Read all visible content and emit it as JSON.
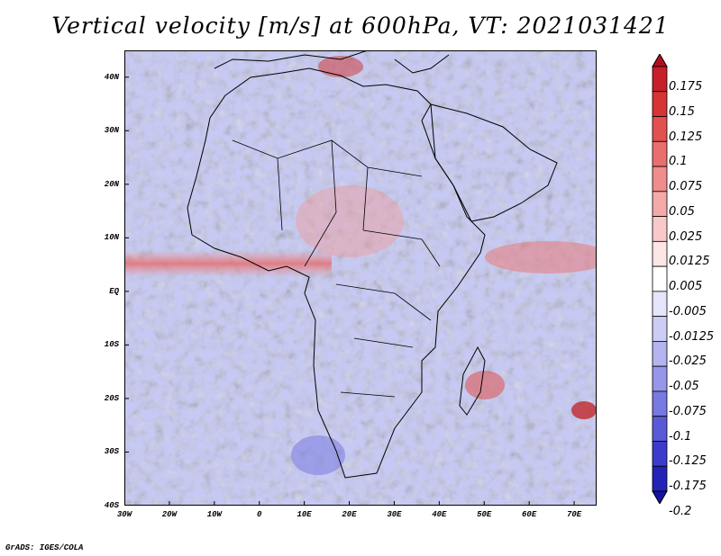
{
  "title": "Vertical velocity [m/s] at 600hPa, VT: 2021031421",
  "credit": "GrADS: IGES/COLA",
  "map": {
    "lon_range": [
      -30,
      75
    ],
    "lat_range": [
      -40,
      45
    ],
    "lat_labels": [
      {
        "lat": 40,
        "text": "40N"
      },
      {
        "lat": 30,
        "text": "30N"
      },
      {
        "lat": 20,
        "text": "20N"
      },
      {
        "lat": 10,
        "text": "10N"
      },
      {
        "lat": 0,
        "text": "EQ"
      },
      {
        "lat": -10,
        "text": "10S"
      },
      {
        "lat": -20,
        "text": "20S"
      },
      {
        "lat": -30,
        "text": "30S"
      },
      {
        "lat": -40,
        "text": "40S"
      }
    ],
    "lon_labels": [
      {
        "lon": -30,
        "text": "30W"
      },
      {
        "lon": -20,
        "text": "20W"
      },
      {
        "lon": -10,
        "text": "10W"
      },
      {
        "lon": 0,
        "text": "0"
      },
      {
        "lon": 10,
        "text": "10E"
      },
      {
        "lon": 20,
        "text": "20E"
      },
      {
        "lon": 30,
        "text": "30E"
      },
      {
        "lon": 40,
        "text": "40E"
      },
      {
        "lon": 50,
        "text": "50E"
      },
      {
        "lon": 60,
        "text": "60E"
      },
      {
        "lon": 70,
        "text": "70E"
      }
    ]
  },
  "colorbar": {
    "labels": [
      "0.175",
      "0.15",
      "0.125",
      "0.1",
      "0.075",
      "0.05",
      "0.025",
      "0.0125",
      "0.005",
      "-0.005",
      "-0.0125",
      "-0.025",
      "-0.05",
      "-0.075",
      "-0.1",
      "-0.125",
      "-0.175",
      "-0.2"
    ],
    "colors": [
      "#b40f1e",
      "#c81e2a",
      "#d73434",
      "#e25050",
      "#ea6e6e",
      "#f08c8c",
      "#f5aaaa",
      "#f9c8c8",
      "#fce6e6",
      "#ffffff",
      "#e4e4fa",
      "#ccccf5",
      "#b4b4f0",
      "#9696ea",
      "#7878e2",
      "#5a5ad8",
      "#3c3ccc",
      "#2323b8",
      "#1414a0"
    ]
  }
}
